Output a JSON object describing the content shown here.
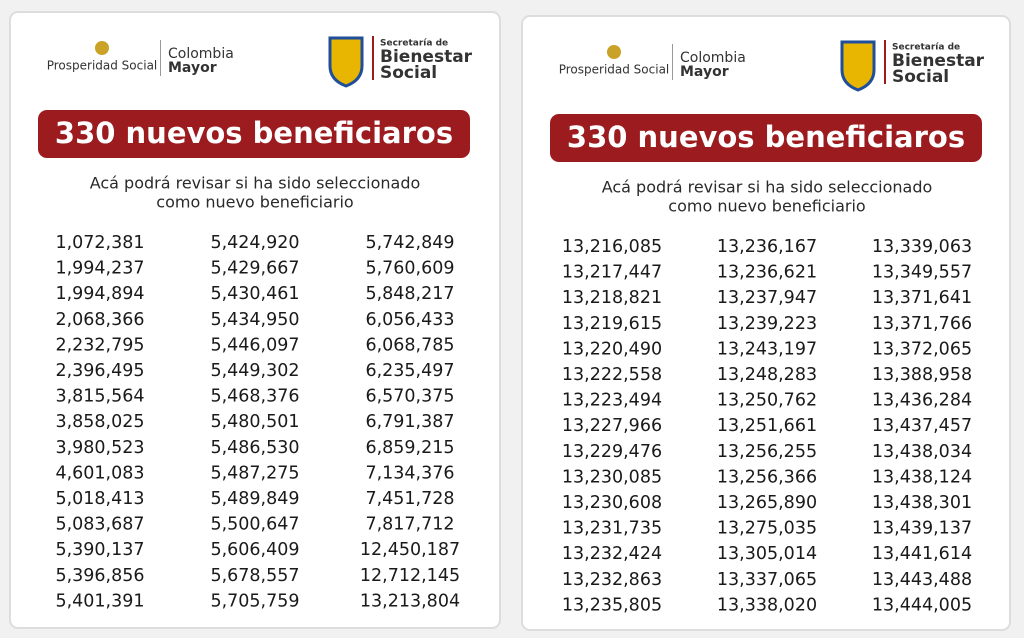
{
  "panels": [
    {
      "logos": {
        "prosperidad": "Prosperidad Social",
        "colombia": "Colombia",
        "mayor": "Mayor",
        "secretaria": "Secretaría de",
        "bienestar": "Bienestar",
        "social": "Social"
      },
      "title": "330 nuevos beneficiaros",
      "subtitle": [
        "Acá podrá revisar si ha sido seleccionado",
        "como nuevo beneficiario"
      ],
      "columns": [
        [
          "1,072,381",
          "1,994,237",
          "1,994,894",
          "2,068,366",
          "2,232,795",
          "2,396,495",
          "3,815,564",
          "3,858,025",
          "3,980,523",
          "4,601,083",
          "5,018,413",
          "5,083,687",
          "5,390,137",
          "5,396,856",
          "5,401,391"
        ],
        [
          "5,424,920",
          "5,429,667",
          "5,430,461",
          "5,434,950",
          "5,446,097",
          "5,449,302",
          "5,468,376",
          "5,480,501",
          "5,486,530",
          "5,487,275",
          "5,489,849",
          "5,500,647",
          "5,606,409",
          "5,678,557",
          "5,705,759"
        ],
        [
          "5,742,849",
          "5,760,609",
          "5,848,217",
          "6,056,433",
          "6,068,785",
          "6,235,497",
          "6,570,375",
          "6,791,387",
          "6,859,215",
          "7,134,376",
          "7,451,728",
          "7,817,712",
          "12,450,187",
          "12,712,145",
          "13,213,804"
        ]
      ]
    },
    {
      "logos": {
        "prosperidad": "Prosperidad Social",
        "colombia": "Colombia",
        "mayor": "Mayor",
        "secretaria": "Secretaría de",
        "bienestar": "Bienestar",
        "social": "Social"
      },
      "title": "330 nuevos beneficiaros",
      "subtitle": [
        "Acá podrá revisar si ha sido seleccionado",
        "como nuevo beneficiario"
      ],
      "columns": [
        [
          "13,216,085",
          "13,217,447",
          "13,218,821",
          "13,219,615",
          "13,220,490",
          "13,222,558",
          "13,223,494",
          "13,227,966",
          "13,229,476",
          "13,230,085",
          "13,230,608",
          "13,231,735",
          "13,232,424",
          "13,232,863",
          "13,235,805"
        ],
        [
          "13,236,167",
          "13,236,621",
          "13,237,947",
          "13,239,223",
          "13,243,197",
          "13,248,283",
          "13,250,762",
          "13,251,661",
          "13,256,255",
          "13,256,366",
          "13,265,890",
          "13,275,035",
          "13,305,014",
          "13,337,065",
          "13,338,020"
        ],
        [
          "13,339,063",
          "13,349,557",
          "13,371,641",
          "13,371,766",
          "13,372,065",
          "13,388,958",
          "13,436,284",
          "13,437,457",
          "13,438,034",
          "13,438,124",
          "13,438,301",
          "13,439,137",
          "13,441,614",
          "13,443,488",
          "13,444,005"
        ]
      ]
    }
  ]
}
